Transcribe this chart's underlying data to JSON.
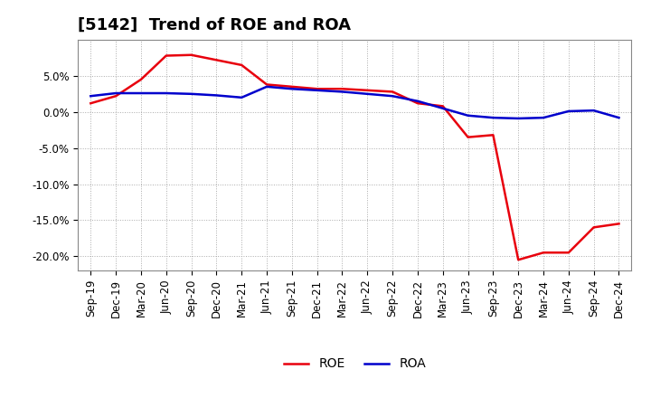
{
  "title": "[5142]  Trend of ROE and ROA",
  "x_labels": [
    "Sep-19",
    "Dec-19",
    "Mar-20",
    "Jun-20",
    "Sep-20",
    "Dec-20",
    "Mar-21",
    "Jun-21",
    "Sep-21",
    "Dec-21",
    "Mar-22",
    "Jun-22",
    "Sep-22",
    "Dec-22",
    "Mar-23",
    "Jun-23",
    "Sep-23",
    "Dec-23",
    "Mar-24",
    "Jun-24",
    "Sep-24",
    "Dec-24"
  ],
  "roe": [
    1.2,
    2.2,
    4.5,
    7.8,
    7.9,
    7.2,
    6.5,
    3.8,
    3.5,
    3.2,
    3.2,
    3.0,
    2.8,
    1.2,
    0.8,
    -3.5,
    -3.2,
    -20.5,
    -19.5,
    -19.5,
    -16.0,
    -15.5
  ],
  "roa": [
    2.2,
    2.6,
    2.6,
    2.6,
    2.5,
    2.3,
    2.0,
    3.5,
    3.2,
    3.0,
    2.8,
    2.5,
    2.2,
    1.5,
    0.5,
    -0.5,
    -0.8,
    -0.9,
    -0.8,
    0.1,
    0.2,
    -0.8
  ],
  "roe_color": "#e8000d",
  "roa_color": "#0000cc",
  "background_color": "#ffffff",
  "grid_color": "#aaaaaa",
  "ylim": [
    -22,
    10
  ],
  "yticks": [
    -20.0,
    -15.0,
    -10.0,
    -5.0,
    0.0,
    5.0
  ],
  "title_fontsize": 13,
  "legend_fontsize": 10,
  "tick_fontsize": 8.5
}
